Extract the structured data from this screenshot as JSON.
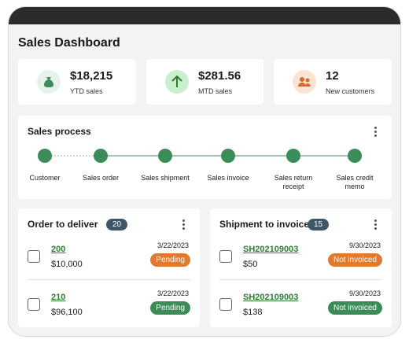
{
  "header": {
    "title": "Sales Dashboard"
  },
  "kpis": [
    {
      "value": "$18,215",
      "label": "YTD sales"
    },
    {
      "value": "$281.56",
      "label": "MTD sales"
    },
    {
      "value": "12",
      "label": "New customers"
    }
  ],
  "process": {
    "title": "Sales process",
    "steps": [
      "Customer",
      "Sales order",
      "Sales shipment",
      "Sales invoice",
      "Sales return receipt",
      "Sales credit memo"
    ]
  },
  "orders": {
    "title": "Order to deliver",
    "count": "20",
    "items": [
      {
        "id": "200",
        "amount": "$10,000",
        "date": "3/22/2023",
        "status": "Pending"
      },
      {
        "id": "210",
        "amount": "$96,100",
        "date": "3/22/2023",
        "status": "Pending"
      }
    ]
  },
  "shipments": {
    "title": "Shipment to invoice",
    "count": "15",
    "items": [
      {
        "id": "SH202109003",
        "amount": "$50",
        "date": "9/30/2023",
        "status": "Not invoiced"
      },
      {
        "id": "SH202109003",
        "amount": "$138",
        "date": "9/30/2023",
        "status": "Not invoiced"
      }
    ]
  }
}
